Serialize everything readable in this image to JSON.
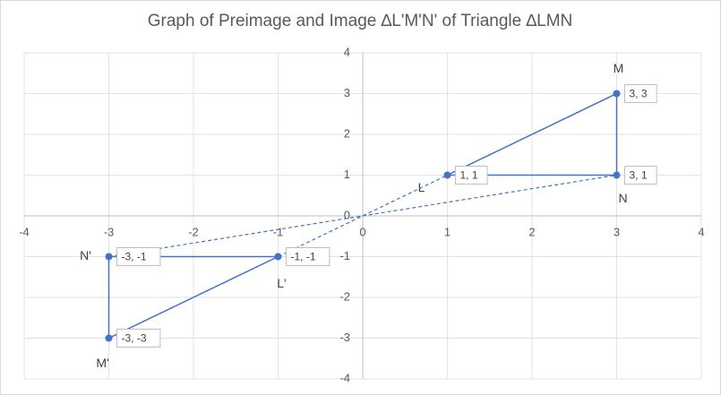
{
  "chart_data": {
    "type": "scatter",
    "title": "Graph of Preimage and Image ∆L'M'N' of Triangle ∆LMN",
    "xlim": [
      -4,
      4
    ],
    "ylim": [
      -4,
      4
    ],
    "xticks": [
      -4,
      -3,
      -2,
      -1,
      0,
      1,
      2,
      3,
      4
    ],
    "yticks": [
      -4,
      -3,
      -2,
      -1,
      0,
      1,
      2,
      3,
      4
    ],
    "grid": true,
    "series": [
      {
        "color": "#4472c4",
        "x": [
          1,
          3,
          3,
          1
        ],
        "y": [
          1,
          3,
          1,
          1
        ]
      },
      {
        "color": "#4472c4",
        "x": [
          -1,
          -3,
          -3,
          -1
        ],
        "y": [
          -1,
          -3,
          -1,
          -1
        ]
      },
      {
        "color": "#4472c4",
        "dashed": true,
        "x": [
          -3,
          3
        ],
        "y": [
          -3,
          3
        ]
      },
      {
        "color": "#4472c4",
        "dashed": true,
        "x": [
          -3,
          3
        ],
        "y": [
          -1,
          1
        ]
      }
    ],
    "points": [
      {
        "name": "L",
        "x": 1,
        "y": 1,
        "label": "1, 1"
      },
      {
        "name": "M",
        "x": 3,
        "y": 3,
        "label": "3, 3"
      },
      {
        "name": "N",
        "x": 3,
        "y": 1,
        "label": "3, 1"
      },
      {
        "name": "L'",
        "x": -1,
        "y": -1,
        "label": "-1, -1"
      },
      {
        "name": "M'",
        "x": -3,
        "y": -3,
        "label": "-3, -3"
      },
      {
        "name": "N'",
        "x": -3,
        "y": -1,
        "label": "-3, -1"
      }
    ]
  }
}
